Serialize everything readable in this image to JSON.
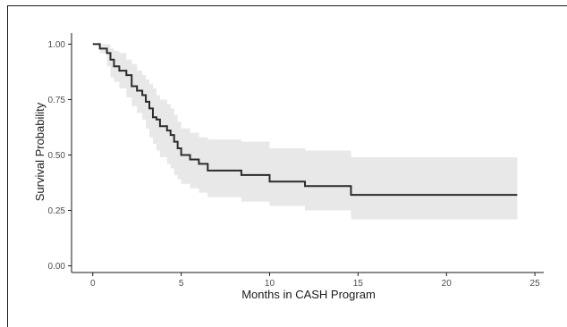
{
  "chart_data": {
    "type": "line",
    "title": "",
    "xlabel": "Months in CASH Program",
    "ylabel": "Survival Probability",
    "xlim": [
      -1.2,
      25.5
    ],
    "ylim": [
      -0.03,
      1.05
    ],
    "xticks": [
      0,
      5,
      10,
      15,
      20,
      25
    ],
    "yticks": [
      0.0,
      0.25,
      0.5,
      0.75,
      1.0
    ],
    "ytick_labels": [
      "0.00",
      "0.25",
      "0.50",
      "0.75",
      "1.00"
    ],
    "grid": false,
    "legend": "none",
    "colors": {
      "line": "#2b2b2b",
      "band": "#e8e8e8",
      "axis": "#1a1a1a",
      "text": "#4d4d4d"
    },
    "series": [
      {
        "role": "survival-step",
        "x": [
          0,
          0.4,
          0.8,
          1.0,
          1.2,
          1.5,
          1.9,
          2.2,
          2.5,
          2.8,
          3.0,
          3.2,
          3.4,
          3.6,
          3.8,
          4.2,
          4.4,
          4.6,
          4.8,
          5.0,
          5.5,
          6.0,
          6.5,
          8.4,
          10.0,
          12.0,
          14.6,
          24.0
        ],
        "y": [
          1.0,
          0.98,
          0.96,
          0.93,
          0.9,
          0.88,
          0.86,
          0.81,
          0.79,
          0.77,
          0.74,
          0.71,
          0.67,
          0.66,
          0.63,
          0.61,
          0.59,
          0.56,
          0.53,
          0.5,
          0.48,
          0.46,
          0.43,
          0.41,
          0.38,
          0.36,
          0.32,
          0.32
        ]
      },
      {
        "role": "confidence-band",
        "x": [
          0,
          0.4,
          0.8,
          1.0,
          1.2,
          1.5,
          1.9,
          2.2,
          2.5,
          2.8,
          3.0,
          3.2,
          3.4,
          3.6,
          3.8,
          4.2,
          4.4,
          4.6,
          4.8,
          5.0,
          5.5,
          6.0,
          6.5,
          8.4,
          10.0,
          12.0,
          14.6,
          24.0
        ],
        "lower": [
          1.0,
          0.96,
          0.9,
          0.85,
          0.83,
          0.8,
          0.76,
          0.72,
          0.69,
          0.66,
          0.62,
          0.58,
          0.55,
          0.52,
          0.49,
          0.46,
          0.44,
          0.41,
          0.39,
          0.37,
          0.35,
          0.33,
          0.31,
          0.29,
          0.27,
          0.25,
          0.21,
          0.21
        ],
        "upper": [
          1.0,
          1.0,
          1.0,
          0.98,
          0.97,
          0.96,
          0.93,
          0.91,
          0.88,
          0.86,
          0.84,
          0.82,
          0.8,
          0.77,
          0.75,
          0.73,
          0.71,
          0.68,
          0.65,
          0.62,
          0.6,
          0.58,
          0.57,
          0.56,
          0.53,
          0.52,
          0.49,
          0.49
        ]
      }
    ]
  }
}
